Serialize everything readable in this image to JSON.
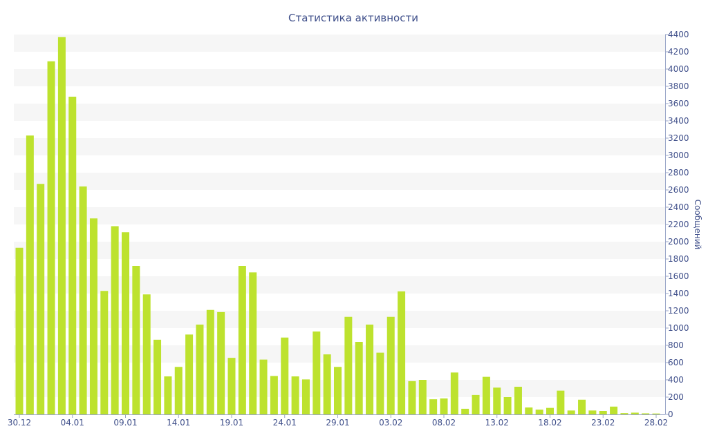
{
  "chart_data": {
    "type": "bar",
    "title": "Статистика активности",
    "ylabel": "Сообщений",
    "xlabel": "",
    "ylim": [
      0,
      4400
    ],
    "y_ticks": [
      0,
      200,
      400,
      600,
      800,
      1000,
      1200,
      1400,
      1600,
      1800,
      2000,
      2200,
      2400,
      2600,
      2800,
      3000,
      3200,
      3400,
      3600,
      3800,
      4000,
      4200,
      4400
    ],
    "y_axis_side": "right",
    "grid": "horizontal bands",
    "bar_color": "#bde22e",
    "band_color": "#f6f6f6",
    "text_color": "#3f4f8a",
    "x_tick_labels": [
      {
        "label": "30.12",
        "index": 0
      },
      {
        "label": "04.01",
        "index": 5
      },
      {
        "label": "09.01",
        "index": 10
      },
      {
        "label": "14.01",
        "index": 15
      },
      {
        "label": "19.01",
        "index": 20
      },
      {
        "label": "24.01",
        "index": 25
      },
      {
        "label": "29.01",
        "index": 30
      },
      {
        "label": "03.02",
        "index": 35
      },
      {
        "label": "08.02",
        "index": 40
      },
      {
        "label": "13.02",
        "index": 45
      },
      {
        "label": "18.02",
        "index": 50
      },
      {
        "label": "23.02",
        "index": 55
      },
      {
        "label": "28.02",
        "index": 60
      }
    ],
    "values": [
      1930,
      3230,
      2670,
      4090,
      4370,
      3680,
      2640,
      2270,
      1430,
      2180,
      2110,
      1720,
      1390,
      865,
      440,
      550,
      925,
      1040,
      1210,
      1185,
      655,
      1720,
      1645,
      635,
      445,
      890,
      440,
      405,
      960,
      695,
      550,
      1130,
      840,
      1040,
      715,
      1130,
      1425,
      385,
      400,
      175,
      185,
      485,
      65,
      225,
      435,
      310,
      200,
      320,
      80,
      55,
      75,
      275,
      45,
      170,
      45,
      40,
      90,
      15,
      20,
      12,
      10
    ]
  }
}
